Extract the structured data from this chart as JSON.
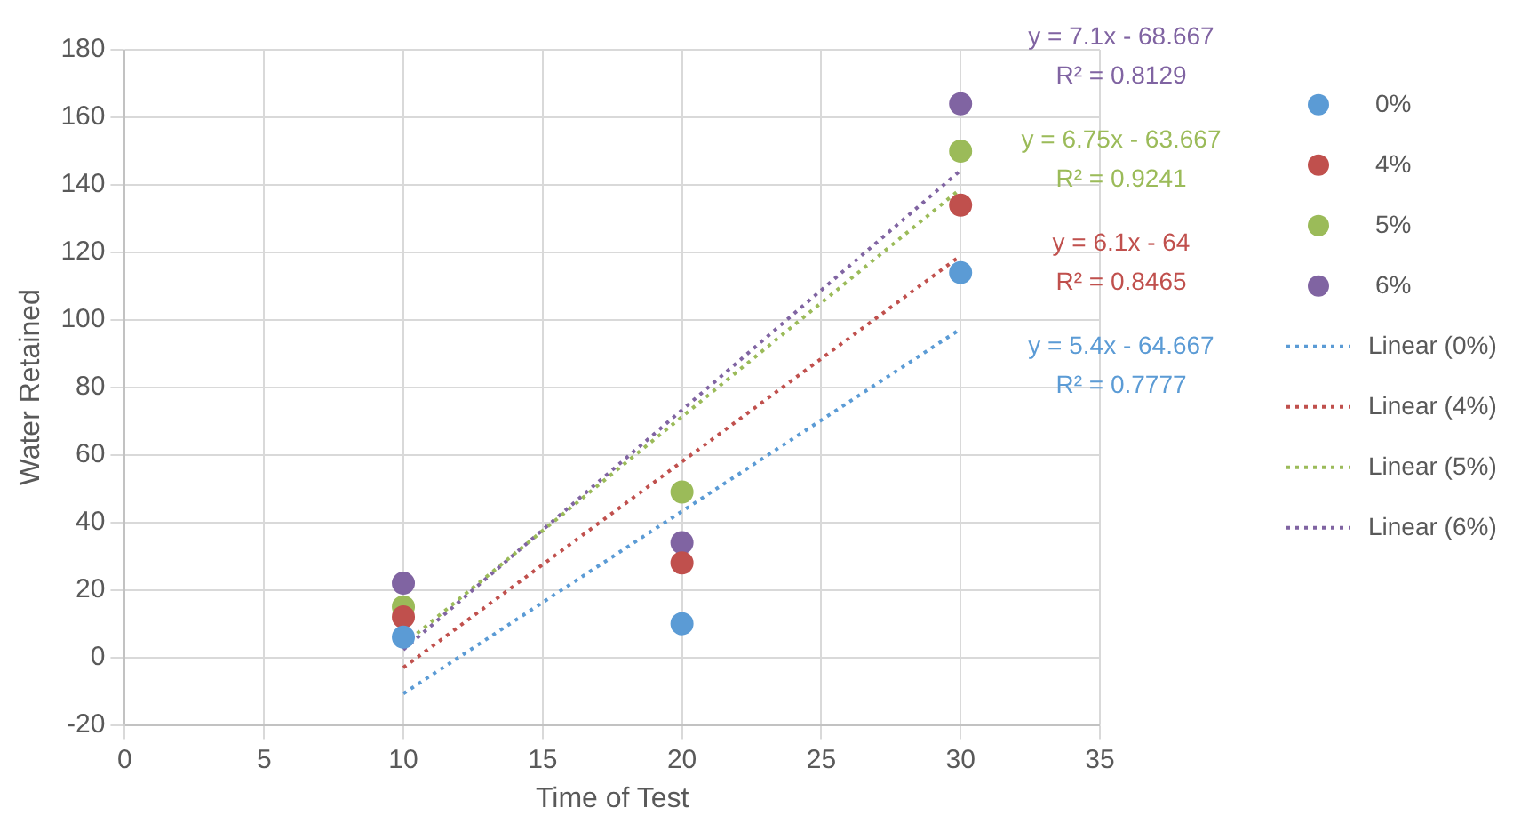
{
  "chart_data": {
    "type": "scatter",
    "xlabel": "Time of Test",
    "ylabel": "Water Retained",
    "xlim": [
      0,
      35
    ],
    "xticks": [
      0,
      5,
      10,
      15,
      20,
      25,
      30,
      35
    ],
    "ylim": [
      -20,
      180
    ],
    "yticks": [
      -20,
      0,
      20,
      40,
      60,
      80,
      100,
      120,
      140,
      160,
      180
    ],
    "grid": true,
    "legend": "right",
    "marker": "circle",
    "series": [
      {
        "name": "0%",
        "color": "#5b9bd5",
        "x": [
          10,
          20,
          30
        ],
        "values": [
          6,
          10,
          114
        ]
      },
      {
        "name": "4%",
        "color": "#c0504d",
        "x": [
          10,
          20,
          30
        ],
        "values": [
          12,
          28,
          134
        ]
      },
      {
        "name": "5%",
        "color": "#9bbb59",
        "x": [
          10,
          20,
          30
        ],
        "values": [
          15,
          49,
          150
        ]
      },
      {
        "name": "6%",
        "color": "#8064a2",
        "x": [
          10,
          20,
          30
        ],
        "values": [
          22,
          34,
          164
        ]
      },
      {
        "name": "Linear (0%)",
        "type": "line",
        "line_style": "dotted",
        "marker": "none",
        "color": "#5b9bd5",
        "x": [
          10,
          30
        ],
        "values": [
          -10.7,
          97.3
        ]
      },
      {
        "name": "Linear (4%)",
        "type": "line",
        "line_style": "dotted",
        "marker": "none",
        "color": "#c0504d",
        "x": [
          10,
          30
        ],
        "values": [
          -3,
          119
        ]
      },
      {
        "name": "Linear (5%)",
        "type": "line",
        "line_style": "dotted",
        "marker": "none",
        "color": "#9bbb59",
        "x": [
          10,
          30
        ],
        "values": [
          3.8,
          138.8
        ]
      },
      {
        "name": "Linear (6%)",
        "type": "line",
        "line_style": "dotted",
        "marker": "none",
        "color": "#8064a2",
        "x": [
          10,
          30
        ],
        "values": [
          2.3,
          144.3
        ]
      }
    ],
    "annotations": [
      "y = 5.4x - 64.667",
      "R² = 0.7777",
      "y = 6.1x - 64",
      "R² = 0.8465",
      "y = 6.75x - 63.667",
      "R² = 0.9241",
      "y = 7.1x - 68.667",
      "R² = 0.8129"
    ]
  }
}
